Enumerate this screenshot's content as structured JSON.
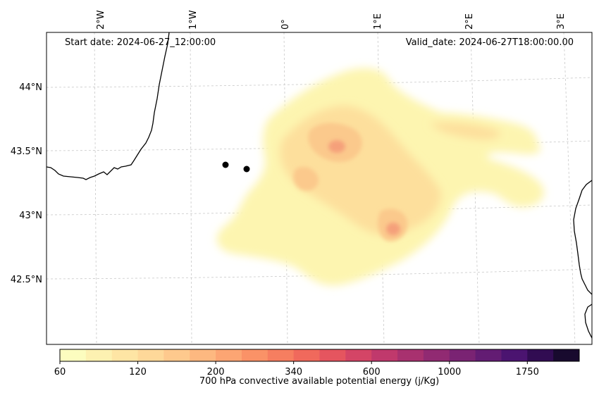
{
  "map": {
    "start_label": "Start date: 2024-06-27_12:00:00",
    "valid_label": "Valid_date: 2024-06-27T18:00:00.00",
    "lon_labels": [
      "2°W",
      "1°W",
      "0°",
      "1°E",
      "2°E",
      "3°E"
    ],
    "lat_labels": [
      "44°N",
      "43.5°N",
      "43°N",
      "42.5°N"
    ],
    "field_colors": {
      "light": "#fdf5b0",
      "mid": "#fddf9c",
      "warm": "#fbc98c",
      "hot": "#f5a07a"
    },
    "point_markers": 2
  },
  "colorbar": {
    "tick_labels": [
      "60",
      "120",
      "200",
      "340",
      "600",
      "1000",
      "1750"
    ],
    "label": "700 hPa convective available potential energy (j/Kg)",
    "colors": [
      "#fcfdbf",
      "#fdf1b1",
      "#fee5a4",
      "#fed899",
      "#fec98d",
      "#fdb880",
      "#fca573",
      "#fa9267",
      "#f67e60",
      "#f0695c",
      "#e5555f",
      "#d44566",
      "#c0396c",
      "#a8316f",
      "#912a72",
      "#7a2373",
      "#631c73",
      "#4b1470",
      "#310c52",
      "#180a2e"
    ]
  }
}
